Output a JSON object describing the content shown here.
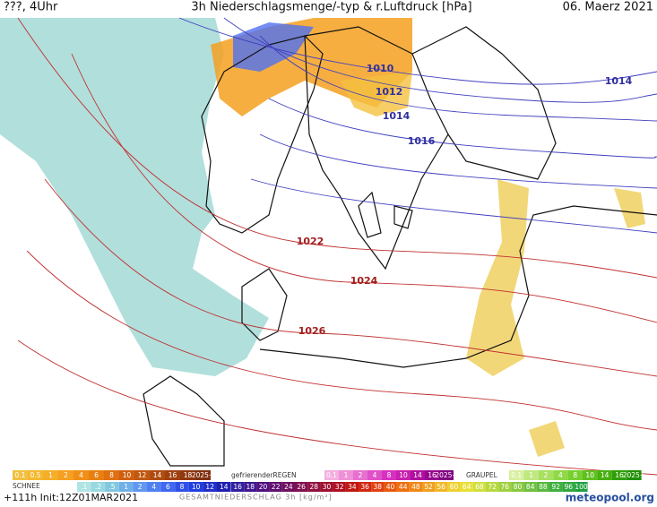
{
  "header": {
    "left": "???, 4Uhr",
    "title": "3h Niederschlagsmenge/-typ & r.Luftdruck [hPa]",
    "date": "06. Maerz 2021"
  },
  "isobar_labels": [
    "1010",
    "1012",
    "1014",
    "1016",
    "1014",
    "1022",
    "1024",
    "1026"
  ],
  "legend": {
    "rain": {
      "labels": [
        "0.1",
        "0.5",
        "1",
        "2",
        "4",
        "6",
        "8",
        "10",
        "12",
        "14",
        "16",
        "18",
        "2025+"
      ],
      "colors": [
        "#f0c040",
        "#f4b830",
        "#f5ae28",
        "#f5a020",
        "#f09018",
        "#e88010",
        "#e07010",
        "#d06010",
        "#c05810",
        "#b04c10",
        "#a04010",
        "#903810",
        "#803010"
      ]
    },
    "freezing_rain": {
      "caption": "gefrierenderREGEN",
      "labels": [
        "0.1",
        "1",
        "2",
        "4",
        "8",
        "10",
        "14",
        "16",
        "2025+"
      ],
      "colors": [
        "#f4b0e0",
        "#f090d8",
        "#e870d0",
        "#e050c8",
        "#d830c0",
        "#c820b0",
        "#b010a0",
        "#980890",
        "#800080"
      ]
    },
    "graupel": {
      "caption": "GRAUPEL",
      "labels": [
        "0.1",
        "1",
        "2",
        "4",
        "8",
        "10",
        "14",
        "16",
        "2025+"
      ],
      "colors": [
        "#d8f0a0",
        "#c0e880",
        "#a8e060",
        "#90d848",
        "#78d030",
        "#60c020",
        "#48b010",
        "#30a008",
        "#209000"
      ]
    },
    "snow": {
      "caption": "SCHNEE",
      "labels": [
        ".1",
        ".2",
        ".5",
        "1",
        "2",
        "4",
        "6",
        "8",
        "10",
        "12",
        "14"
      ],
      "colors": [
        "#b0e4e4",
        "#98d8e0",
        "#80c8e0",
        "#70b0e8",
        "#6098f0",
        "#5080f0",
        "#4068f0",
        "#3050e8",
        "#2040e0",
        "#2030c8",
        "#2020b0"
      ]
    },
    "total": {
      "caption": "GESAMTNIEDERSCHLAG 3h [kg/m²]",
      "labels": [
        "16",
        "18",
        "20",
        "22",
        "24",
        "26",
        "28",
        "30",
        "32",
        "34",
        "36",
        "38",
        "40",
        "44",
        "48",
        "52",
        "56",
        "60",
        "64",
        "68",
        "72",
        "76",
        "80",
        "84",
        "88",
        "92",
        "96",
        "100"
      ],
      "colors": [
        "#3020a0",
        "#401890",
        "#501080",
        "#601070",
        "#701060",
        "#801050",
        "#901040",
        "#a01030",
        "#b01020",
        "#c01810",
        "#d02810",
        "#e04010",
        "#e85810",
        "#f07010",
        "#f08818",
        "#f0a020",
        "#f0b828",
        "#f0d030",
        "#e8e038",
        "#d0e040",
        "#b8d840",
        "#a0d040",
        "#88c840",
        "#70c040",
        "#58b840",
        "#40b040",
        "#30a840",
        "#20a040"
      ]
    }
  },
  "footer": {
    "run": "+111h Init:12Z01MAR2021",
    "brand": "meteopool.org"
  }
}
